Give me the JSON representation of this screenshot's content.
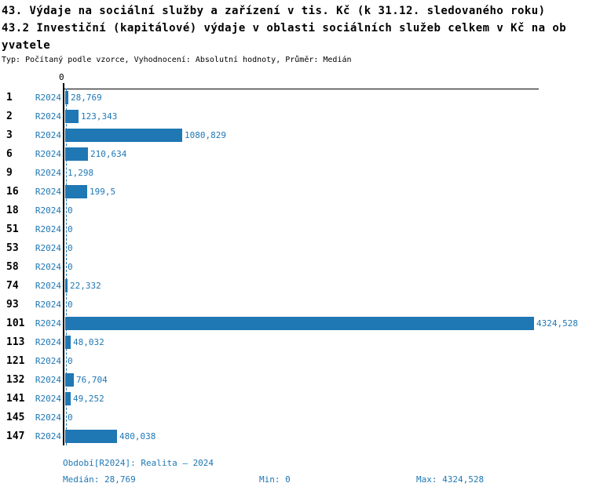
{
  "colors": {
    "bar": "#1f77b4",
    "blue_text": "#1f77b4",
    "axis": "#000000"
  },
  "chart_data": {
    "type": "bar",
    "orientation": "horizontal",
    "title": "43. Výdaje na sociální služby a zařízení v tis. Kč (k 31.12. sledovaného roku)",
    "subtitle_line1": "43.2 Investiční (kapitálové) výdaje v oblasti sociálních služeb celkem v Kč na ob",
    "subtitle_line2": "yvatele",
    "type_note": "Typ: Počítaný podle vzorce, Vyhodnocení: Absolutní hodnoty, Průměr: Medián",
    "axis_zero_label": "0",
    "xlim": [
      0,
      4324.528
    ],
    "grid": false,
    "legend": null,
    "median_value": 28.769,
    "series_name": "R2024",
    "categories": [
      "1",
      "2",
      "3",
      "6",
      "9",
      "16",
      "18",
      "51",
      "53",
      "58",
      "74",
      "93",
      "101",
      "113",
      "121",
      "132",
      "141",
      "145",
      "147"
    ],
    "rows": [
      {
        "category": "1",
        "period": "R2024",
        "value": 28.769,
        "value_label": "28,769"
      },
      {
        "category": "2",
        "period": "R2024",
        "value": 123.343,
        "value_label": "123,343"
      },
      {
        "category": "3",
        "period": "R2024",
        "value": 1080.829,
        "value_label": "1080,829"
      },
      {
        "category": "6",
        "period": "R2024",
        "value": 210.634,
        "value_label": "210,634"
      },
      {
        "category": "9",
        "period": "R2024",
        "value": 1.298,
        "value_label": "1,298"
      },
      {
        "category": "16",
        "period": "R2024",
        "value": 199.5,
        "value_label": "199,5"
      },
      {
        "category": "18",
        "period": "R2024",
        "value": 0,
        "value_label": "0"
      },
      {
        "category": "51",
        "period": "R2024",
        "value": 0,
        "value_label": "0"
      },
      {
        "category": "53",
        "period": "R2024",
        "value": 0,
        "value_label": "0"
      },
      {
        "category": "58",
        "period": "R2024",
        "value": 0,
        "value_label": "0"
      },
      {
        "category": "74",
        "period": "R2024",
        "value": 22.332,
        "value_label": "22,332"
      },
      {
        "category": "93",
        "period": "R2024",
        "value": 0,
        "value_label": "0"
      },
      {
        "category": "101",
        "period": "R2024",
        "value": 4324.528,
        "value_label": "4324,528"
      },
      {
        "category": "113",
        "period": "R2024",
        "value": 48.032,
        "value_label": "48,032"
      },
      {
        "category": "121",
        "period": "R2024",
        "value": 0,
        "value_label": "0"
      },
      {
        "category": "132",
        "period": "R2024",
        "value": 76.704,
        "value_label": "76,704"
      },
      {
        "category": "141",
        "period": "R2024",
        "value": 49.252,
        "value_label": "49,252"
      },
      {
        "category": "145",
        "period": "R2024",
        "value": 0,
        "value_label": "0"
      },
      {
        "category": "147",
        "period": "R2024",
        "value": 480.038,
        "value_label": "480,038"
      }
    ]
  },
  "footer": {
    "period_line": "Období[R2024]: Realita – 2024",
    "median_label": "Medián: 28,769",
    "min_label": "Min: 0",
    "max_label": "Max: 4324,528"
  }
}
